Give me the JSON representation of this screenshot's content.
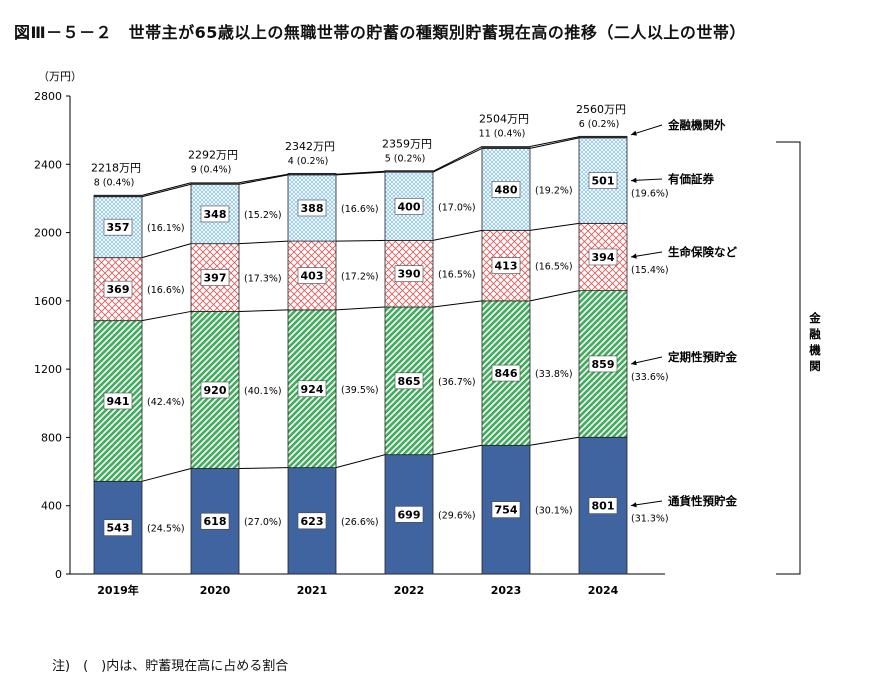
{
  "title": "図Ⅲ－５－２　世帯主が65歳以上の無職世帯の貯蓄の種類別貯蓄現在高の推移（二人以上の世帯）",
  "note": "注)　(　)内は、貯蓄現在高に占める割合",
  "chart_data": {
    "type": "bar",
    "stacked": true,
    "ylabel": "（万円）",
    "ylim": [
      0,
      2800
    ],
    "yticks": [
      0,
      400,
      800,
      1200,
      1600,
      2000,
      2400,
      2800
    ],
    "categories": [
      "2019年",
      "2020",
      "2021",
      "2022",
      "2023",
      "2024"
    ],
    "series": [
      {
        "name": "通貨性預貯金",
        "values": [
          543,
          618,
          623,
          699,
          754,
          801
        ],
        "shares": [
          "(24.5%)",
          "(27.0%)",
          "(26.6%)",
          "(29.6%)",
          "(30.1%)",
          "(31.3%)"
        ],
        "color": "#3f64a0"
      },
      {
        "name": "定期性預貯金",
        "values": [
          941,
          920,
          924,
          865,
          846,
          859
        ],
        "shares": [
          "(42.4%)",
          "(40.1%)",
          "(39.5%)",
          "(36.7%)",
          "(33.8%)",
          "(33.6%)"
        ],
        "color": "#3fae5c"
      },
      {
        "name": "生命保険など",
        "values": [
          369,
          397,
          403,
          390,
          413,
          394
        ],
        "shares": [
          "(16.6%)",
          "(17.3%)",
          "(17.2%)",
          "(16.5%)",
          "(16.5%)",
          "(15.4%)"
        ],
        "color": "#e05a5a"
      },
      {
        "name": "有価証券",
        "values": [
          357,
          348,
          388,
          400,
          480,
          501
        ],
        "shares": [
          "(16.1%)",
          "(15.2%)",
          "(16.6%)",
          "(17.0%)",
          "(19.2%)",
          "(19.6%)"
        ],
        "color": "#5aa8dc"
      },
      {
        "name": "金融機関外",
        "values": [
          8,
          9,
          4,
          5,
          11,
          6
        ],
        "shares": [
          "(0.4%)",
          "(0.4%)",
          "(0.2%)",
          "(0.2%)",
          "(0.4%)",
          "(0.2%)"
        ],
        "color": "#222222"
      }
    ],
    "totals": [
      "2218万円",
      "2292万円",
      "2342万円",
      "2359万円",
      "2504万円",
      "2560万円"
    ],
    "bracket_label": "金融機関",
    "grid": false
  }
}
